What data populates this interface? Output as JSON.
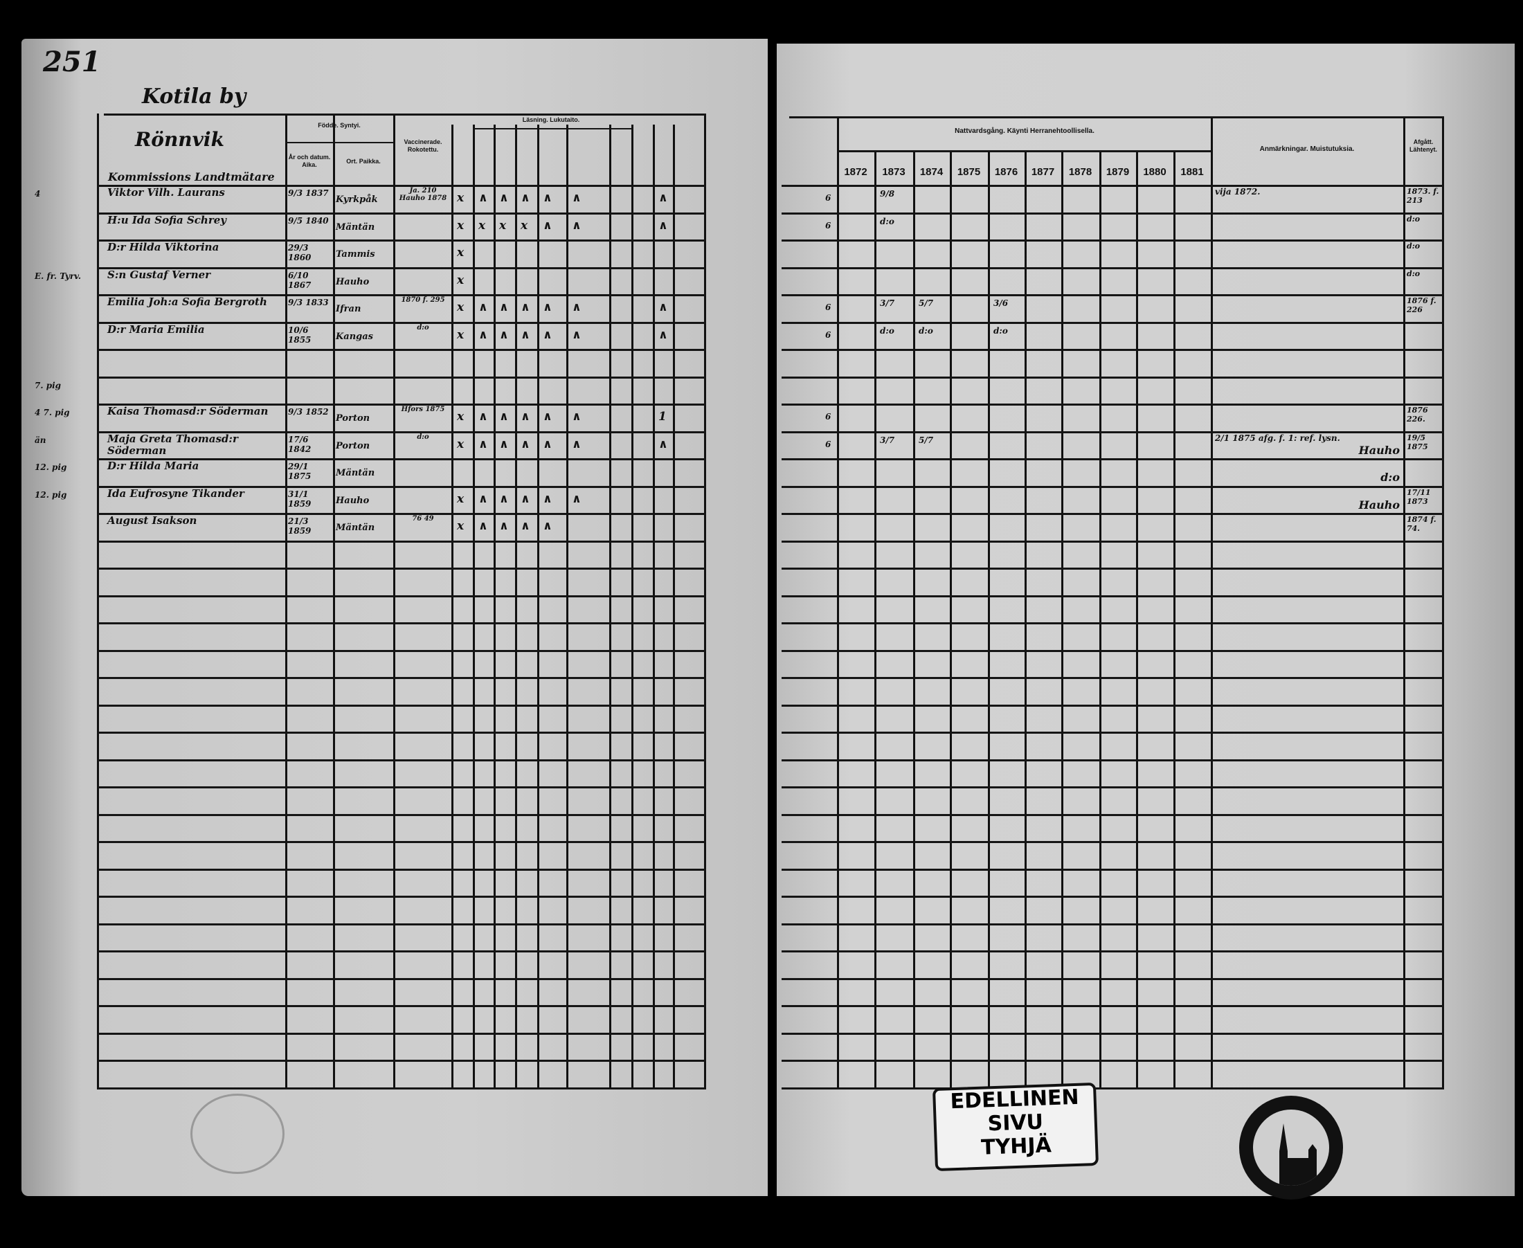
{
  "left_page": {
    "page_number": "251",
    "village": "Kotila by",
    "farm": "Rönnvik",
    "farm_subtitle": "Kommissions Landtmätare",
    "headers": {
      "born": "Födde. Syntyi.",
      "born_date": "År och datum. Aika.",
      "born_place": "Ort. Paikka.",
      "vaccinated": "Vaccinerade. Rokotettu.",
      "reading": "Läsning. Lukutaito."
    },
    "margin_notes": [
      {
        "row": 1,
        "text": "4"
      },
      {
        "row": 4,
        "text": "E. fr. Tyrv."
      },
      {
        "row": 8,
        "text": "7. pig"
      },
      {
        "row": 9,
        "text": "4 7. pig"
      },
      {
        "row": 10,
        "text": "än"
      },
      {
        "row": 11,
        "text": "12. pig"
      },
      {
        "row": 12,
        "text": "12. pig"
      }
    ],
    "rows": [
      {
        "name": "Viktor Vilh. Laurans",
        "date": "9/3 1837",
        "place": "Kyrkpåk",
        "vacc": "Ja. 210 Hauho 1878",
        "marks": [
          "x",
          "∧",
          "∧",
          "∧",
          "∧",
          "∧",
          "",
          "",
          "∧",
          ""
        ]
      },
      {
        "name": "H:u Ida Sofia Schrey",
        "date": "9/5 1840",
        "place": "Mäntän",
        "vacc": "",
        "marks": [
          "x",
          "x",
          "x",
          "x",
          "∧",
          "∧",
          "",
          "",
          "∧",
          ""
        ]
      },
      {
        "name": "D:r Hilda Viktorina",
        "date": "29/3 1860",
        "place": "Tammis",
        "vacc": "",
        "marks": [
          "x",
          "",
          "",
          "",
          "",
          "",
          "",
          "",
          "",
          ""
        ]
      },
      {
        "name": "S:n Gustaf Verner",
        "date": "6/10 1867",
        "place": "Hauho",
        "vacc": "",
        "marks": [
          "x",
          "",
          "",
          "",
          "",
          "",
          "",
          "",
          "",
          ""
        ]
      },
      {
        "name": "Emilia Joh:a Sofia Bergroth",
        "date": "9/3 1833",
        "place": "Ifran",
        "vacc": "1870 f. 295",
        "marks": [
          "x",
          "∧",
          "∧",
          "∧",
          "∧",
          "∧",
          "",
          "",
          "∧",
          ""
        ]
      },
      {
        "name": "D:r Maria Emilia",
        "date": "10/6 1855",
        "place": "Kangas",
        "vacc": "d:o",
        "marks": [
          "x",
          "∧",
          "∧",
          "∧",
          "∧",
          "∧",
          "",
          "",
          "∧",
          ""
        ]
      },
      {
        "name": "",
        "date": "",
        "place": "",
        "vacc": "",
        "marks": []
      },
      {
        "name": "",
        "date": "",
        "place": "",
        "vacc": "",
        "marks": []
      },
      {
        "name": "Kaisa Thomasd:r Söderman",
        "date": "9/3 1852",
        "place": "Porton",
        "vacc": "Hfors 1875",
        "marks": [
          "x",
          "∧",
          "∧",
          "∧",
          "∧",
          "∧",
          "",
          "",
          "1",
          ""
        ]
      },
      {
        "name": "Maja Greta Thomasd:r Söderman",
        "date": "17/6 1842",
        "place": "Porton",
        "vacc": "d:o",
        "marks": [
          "x",
          "∧",
          "∧",
          "∧",
          "∧",
          "∧",
          "",
          "",
          "∧",
          ""
        ]
      },
      {
        "name": "D:r Hilda Maria",
        "date": "29/1 1875",
        "place": "Mäntän",
        "vacc": "",
        "marks": []
      },
      {
        "name": "Ida Eufrosyne Tikander",
        "date": "31/1 1859",
        "place": "Hauho",
        "vacc": "",
        "marks": [
          "x",
          "∧",
          "∧",
          "∧",
          "∧",
          "∧",
          "",
          "",
          "",
          ""
        ]
      },
      {
        "name": "August Isakson",
        "date": "21/3 1859",
        "place": "Mäntän",
        "vacc": "76 49",
        "marks": [
          "x",
          "∧",
          "∧",
          "∧",
          "∧",
          "",
          "",
          "",
          "",
          ""
        ]
      }
    ],
    "total_rows": 33
  },
  "right_page": {
    "communion_header": "Nattvardsgång. Käynti Herranehtoollisella.",
    "years": [
      "1872",
      "1873",
      "1874",
      "1875",
      "1876",
      "1877",
      "1878",
      "1879",
      "1880",
      "1881"
    ],
    "remarks_header": "Anmärkningar. Muistutuksia.",
    "departed_header": "Afgått. Lähtenyt.",
    "rows": [
      {
        "left": "6",
        "communion": [
          "",
          "9/8",
          "",
          "",
          "",
          "",
          "",
          "",
          "",
          ""
        ],
        "remarks": "vija 1872.",
        "remarks_place": "",
        "departed": "1873. f. 213"
      },
      {
        "left": "6",
        "communion": [
          "",
          "d:o",
          "",
          "",
          "",
          "",
          "",
          "",
          "",
          ""
        ],
        "remarks": "",
        "remarks_place": "",
        "departed": "d:o"
      },
      {
        "left": "",
        "communion": [],
        "remarks": "",
        "remarks_place": "",
        "departed": "d:o"
      },
      {
        "left": "",
        "communion": [],
        "remarks": "",
        "remarks_place": "",
        "departed": "d:o"
      },
      {
        "left": "6",
        "communion": [
          "",
          "3/7",
          "5/7",
          "",
          "3/6",
          "",
          "",
          "",
          "",
          ""
        ],
        "remarks": "",
        "remarks_place": "",
        "departed": "1876 f. 226"
      },
      {
        "left": "6",
        "communion": [
          "",
          "d:o",
          "d:o",
          "",
          "d:o",
          "",
          "",
          "",
          "",
          ""
        ],
        "remarks": "",
        "remarks_place": "",
        "departed": ""
      },
      {
        "left": "",
        "communion": [],
        "remarks": "",
        "remarks_place": "",
        "departed": ""
      },
      {
        "left": "",
        "communion": [],
        "remarks": "",
        "remarks_place": "",
        "departed": ""
      },
      {
        "left": "6",
        "communion": [],
        "remarks": "",
        "remarks_place": "",
        "departed": "1876 226."
      },
      {
        "left": "6",
        "communion": [
          "",
          "3/7",
          "5/7",
          "",
          "",
          "",
          "",
          "",
          "",
          ""
        ],
        "remarks": "2/1 1875 afg. f. 1: ref. lysn.",
        "remarks_place": "Hauho",
        "departed": "19/5 1875"
      },
      {
        "left": "",
        "communion": [],
        "remarks": "",
        "remarks_place": "d:o",
        "departed": ""
      },
      {
        "left": "",
        "communion": [],
        "remarks": "",
        "remarks_place": "Hauho",
        "departed": "17/11 1873"
      },
      {
        "left": "",
        "communion": [],
        "remarks": "",
        "remarks_place": "",
        "departed": "1874 f. 74."
      }
    ],
    "stamp_label": [
      "EDELLINEN",
      "SIVU",
      "TYHJÄ"
    ]
  }
}
